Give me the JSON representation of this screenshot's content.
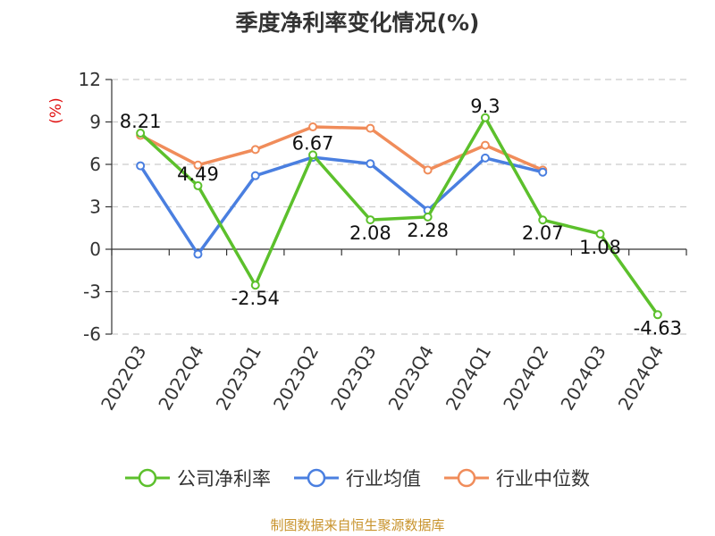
{
  "title": "季度净利率变化情况(%)",
  "source": "制图数据来自恒生聚源数据库",
  "colors": {
    "company": "#5cc02c",
    "industry_avg": "#4a7fe0",
    "industry_median": "#f08c5a",
    "axis_unit": "#e01010"
  },
  "chart_data": {
    "type": "line",
    "title": "季度净利率变化情况(%)",
    "ylabel": "(%)",
    "xlabel": "",
    "ylim": [
      -6,
      12
    ],
    "yticks": [
      -6,
      -3,
      0,
      3,
      6,
      9,
      12
    ],
    "grid": true,
    "legend_position": "bottom",
    "categories": [
      "2022Q3",
      "2022Q4",
      "2023Q1",
      "2023Q2",
      "2023Q3",
      "2023Q4",
      "2024Q1",
      "2024Q2",
      "2024Q3",
      "2024Q4"
    ],
    "series": [
      {
        "name": "公司净利率",
        "key": "company",
        "values": [
          8.21,
          4.49,
          -2.54,
          6.67,
          2.08,
          2.28,
          9.3,
          2.07,
          1.08,
          -4.63
        ],
        "labels": [
          "8.21",
          "4.49",
          "-2.54",
          "6.67",
          "2.08",
          "2.28",
          "9.3",
          "2.07",
          "1.08",
          "-4.63"
        ]
      },
      {
        "name": "行业均值",
        "key": "industry_avg",
        "values": [
          5.9,
          -0.35,
          5.2,
          6.5,
          6.05,
          2.75,
          6.45,
          5.45,
          null,
          null
        ]
      },
      {
        "name": "行业中位数",
        "key": "industry_median",
        "values": [
          8.05,
          5.95,
          7.05,
          8.65,
          8.55,
          5.6,
          7.35,
          5.6,
          null,
          null
        ]
      }
    ]
  }
}
